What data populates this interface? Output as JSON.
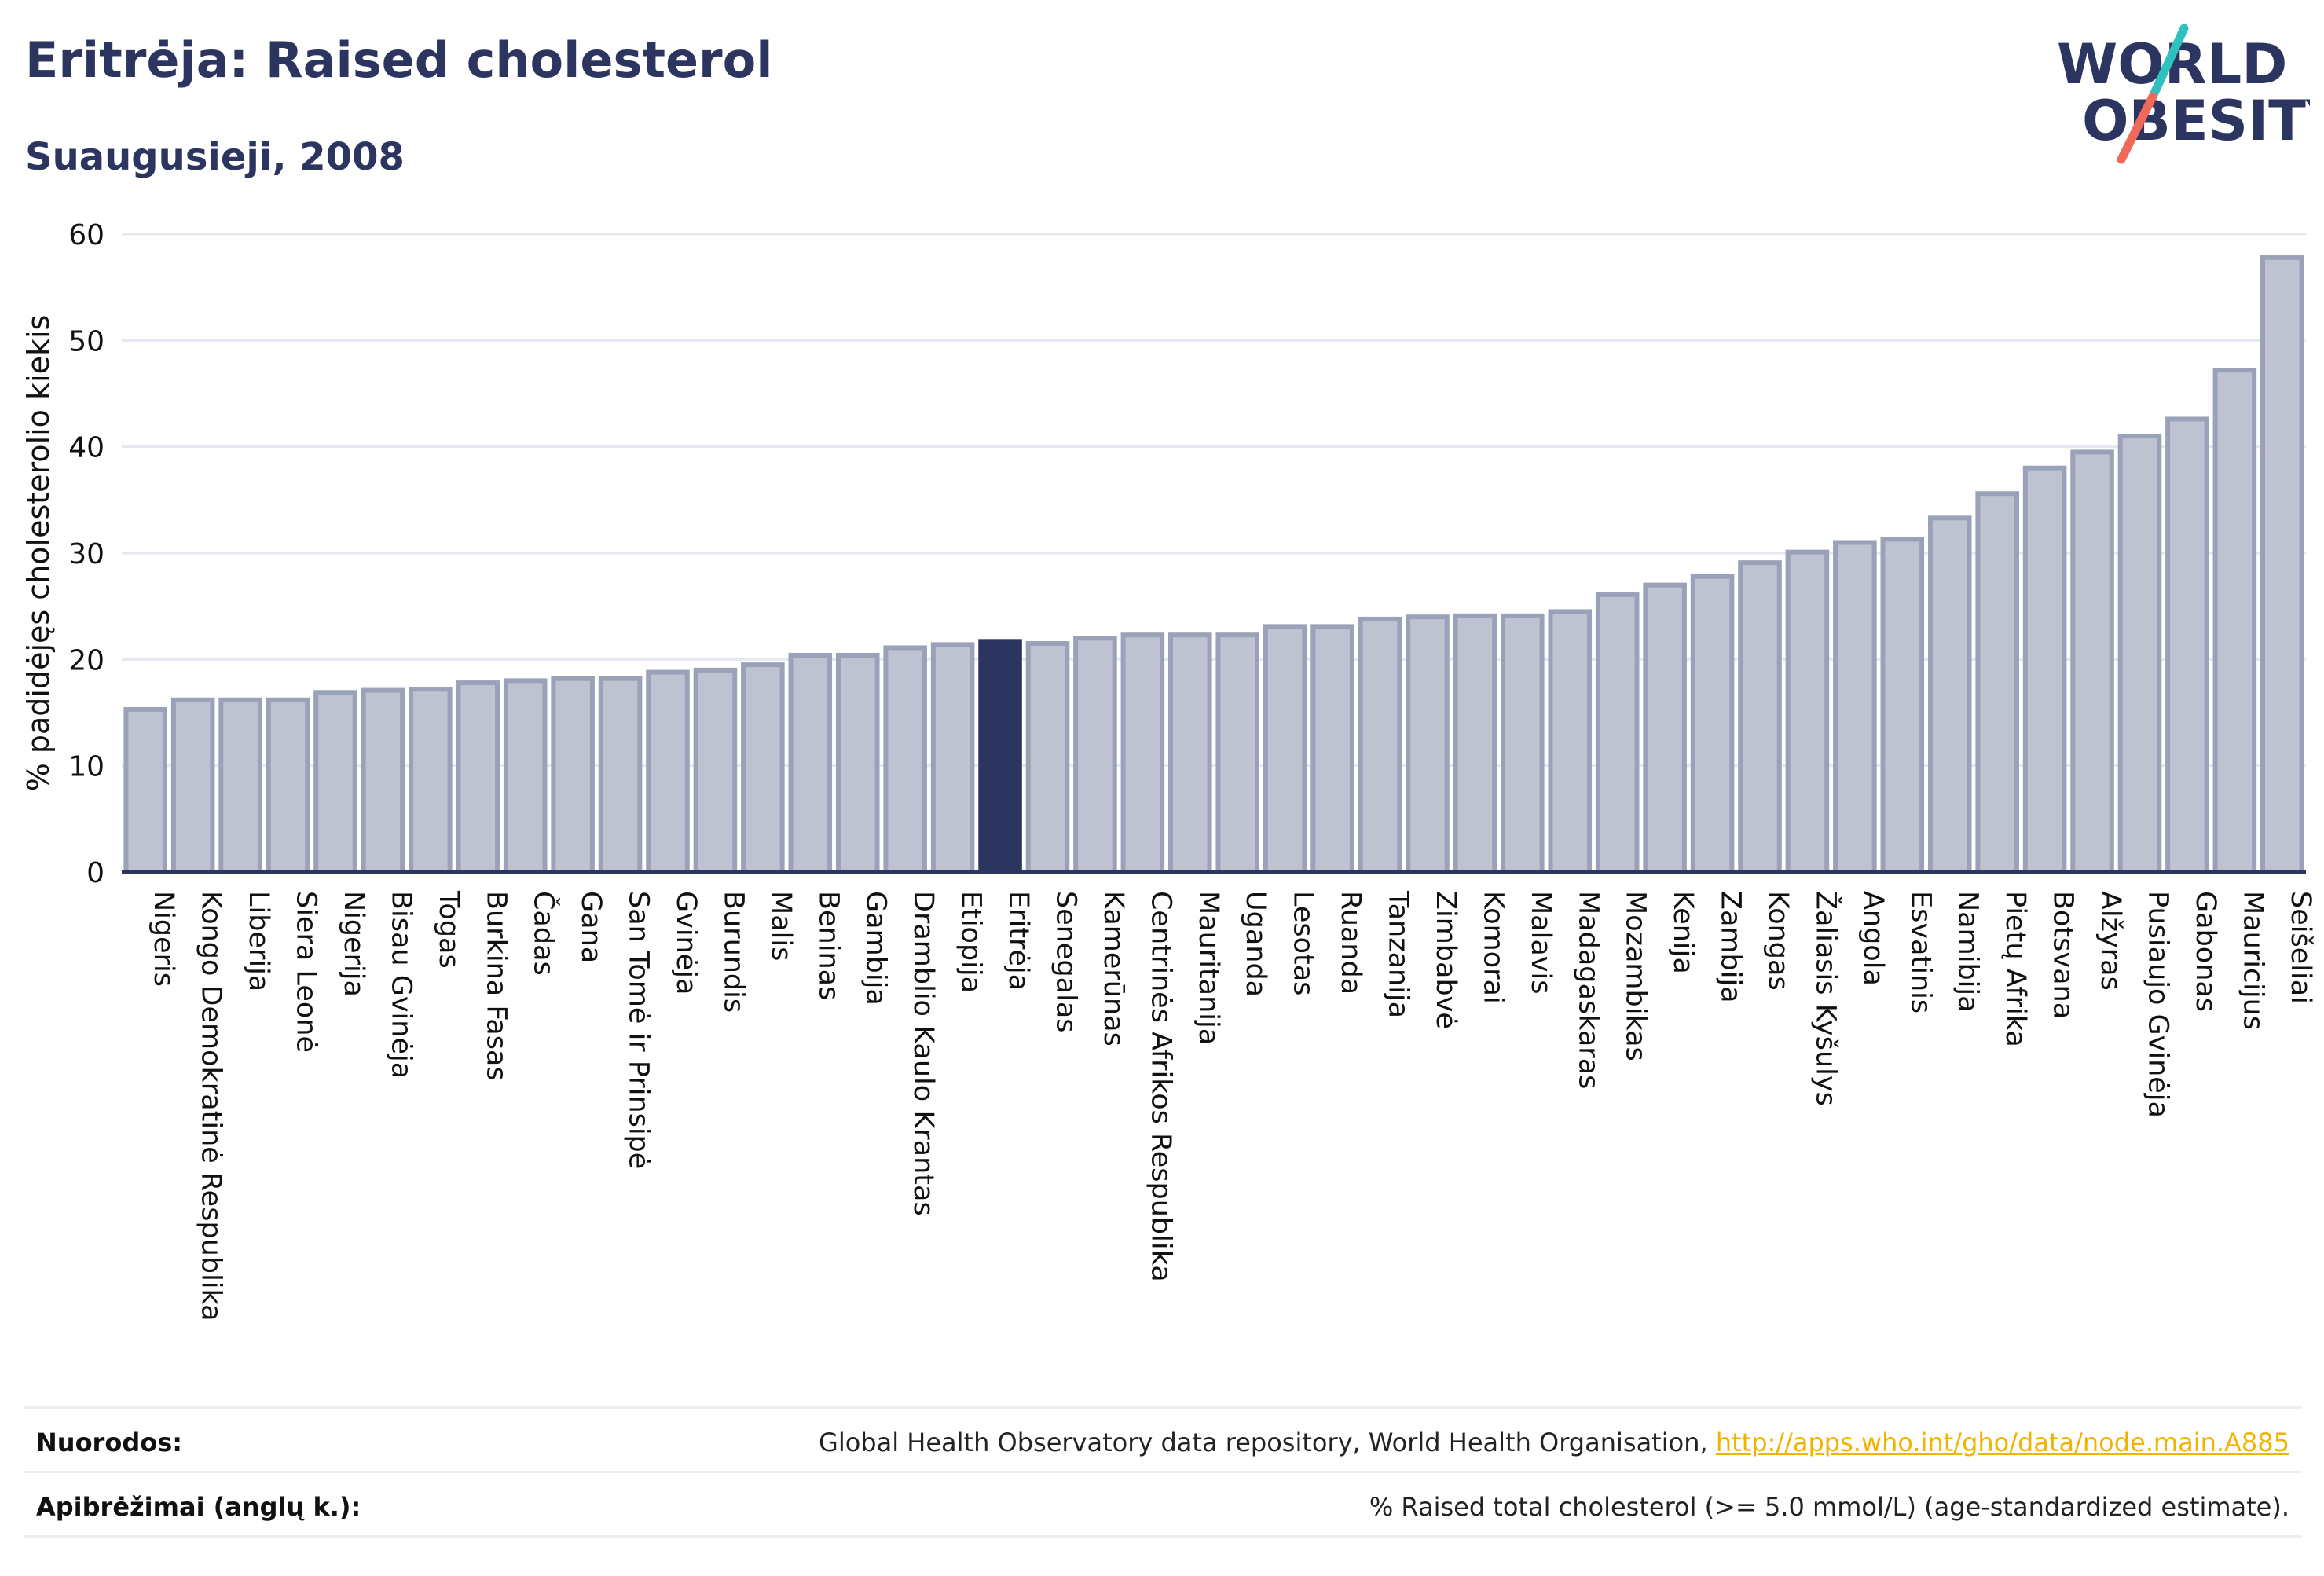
{
  "header": {
    "title": "Eritrėja: Raised cholesterol",
    "subtitle": "Suaugusieji, 2008",
    "logo_text_line1": "WORLD",
    "logo_text_line2": "OBESITY"
  },
  "chart_data": {
    "type": "bar",
    "title": "Eritrėja: Raised cholesterol",
    "subtitle": "Suaugusieji, 2008",
    "ylabel": "% padidėjęs cholesterolio kiekis",
    "xlabel": "",
    "ylim": [
      0,
      60
    ],
    "yticks": [
      0,
      10,
      20,
      30,
      40,
      50,
      60
    ],
    "grid": true,
    "highlight": "Eritrėja",
    "colors": {
      "bar": "#bfc3d1",
      "bar_border": "#9aa1b8",
      "highlight": "#2b3560",
      "grid": "#e6e8ef",
      "axis": "#2b3560"
    },
    "categories": [
      "Nigeris",
      "Kongo Demokratinė Respublika",
      "Liberija",
      "Siera Leonė",
      "Nigerija",
      "Bisau Gvinėja",
      "Togas",
      "Burkina Fasas",
      "Čadas",
      "Gana",
      "San Tomė ir Prinsipė",
      "Gvinėja",
      "Burundis",
      "Malis",
      "Beninas",
      "Gambija",
      "Dramblio Kaulo Krantas",
      "Etiopija",
      "Eritrėja",
      "Senegalas",
      "Kamerūnas",
      "Centrinės Afrikos Respublika",
      "Mauritanija",
      "Uganda",
      "Lesotas",
      "Ruanda",
      "Tanzanija",
      "Zimbabvė",
      "Komorai",
      "Malavis",
      "Madagaskaras",
      "Mozambikas",
      "Kenija",
      "Zambija",
      "Kongas",
      "Žaliasis Kyšulys",
      "Angola",
      "Esvatinis",
      "Namibija",
      "Pietų Afrika",
      "Botsvana",
      "Alžyras",
      "Pusiaujo Gvinėja",
      "Gabonas",
      "Mauricijus",
      "Seišeliai"
    ],
    "values": [
      15.3,
      16.2,
      16.2,
      16.2,
      16.9,
      17.1,
      17.2,
      17.8,
      18.0,
      18.2,
      18.2,
      18.8,
      19.0,
      19.5,
      20.4,
      20.4,
      21.1,
      21.4,
      21.7,
      21.5,
      22.0,
      22.3,
      22.3,
      22.3,
      23.1,
      23.1,
      23.8,
      24.0,
      24.1,
      24.1,
      24.5,
      26.1,
      27.0,
      27.8,
      29.1,
      30.1,
      31.0,
      31.3,
      33.3,
      35.6,
      38.0,
      39.5,
      41.0,
      42.6,
      47.2,
      57.8
    ]
  },
  "footer": {
    "sources_label": "Nuorodos:",
    "sources_text": "Global Health Observatory data repository, World Health Organisation, ",
    "sources_link": "http://apps.who.int/gho/data/node.main.A885",
    "definitions_label": "Apibrėžimai (anglų k.):",
    "definitions_text": "% Raised total cholesterol (>= 5.0 mmol/L) (age-standardized estimate)."
  }
}
